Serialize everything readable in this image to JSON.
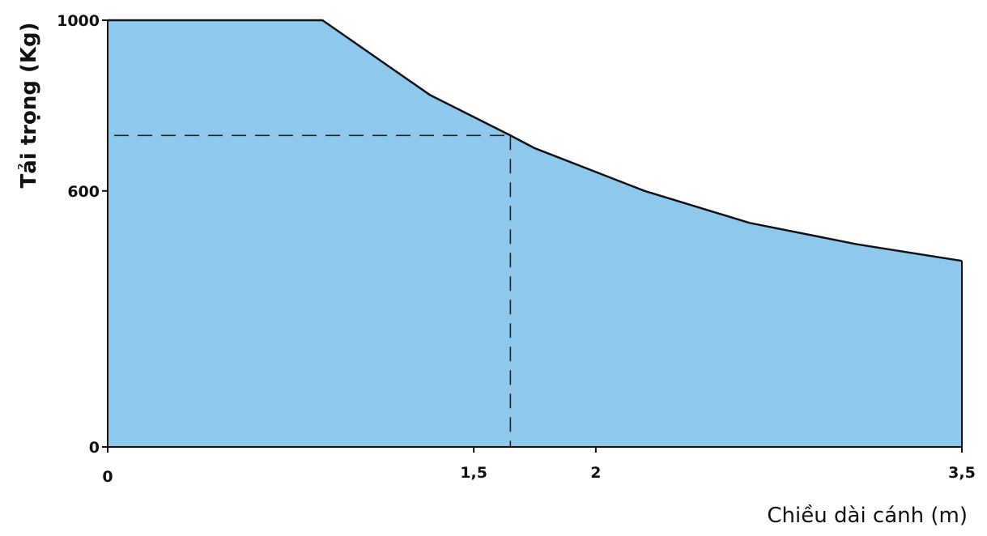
{
  "colors": {
    "fill": "#8ec8ec",
    "line": "#111111",
    "guide": "#222222"
  },
  "chart_data": {
    "type": "area",
    "title": "",
    "xlabel": "Chiều dài cánh (m)",
    "ylabel": "Tải trọng (Kg)",
    "xlim": [
      0,
      3.5
    ],
    "ylim": [
      0,
      1000
    ],
    "x_ticks": [
      {
        "value": 0,
        "label": "0"
      },
      {
        "value": 1.5,
        "label": "1,5"
      },
      {
        "value": 2,
        "label": "2"
      },
      {
        "value": 3.5,
        "label": "3,5"
      }
    ],
    "y_ticks": [
      {
        "value": 0,
        "label": "0"
      },
      {
        "value": 600,
        "label": "600"
      },
      {
        "value": 1000,
        "label": "1000"
      }
    ],
    "series": [
      {
        "x": [
          0,
          0.88,
          1.32,
          1.65,
          1.75,
          2.2,
          2.63,
          3.07,
          3.5
        ],
        "y": [
          1000,
          1000,
          825,
          730,
          700,
          600,
          525,
          475,
          436
        ]
      }
    ],
    "reference_point": {
      "x": 1.65,
      "y": 730
    },
    "grid": false
  }
}
